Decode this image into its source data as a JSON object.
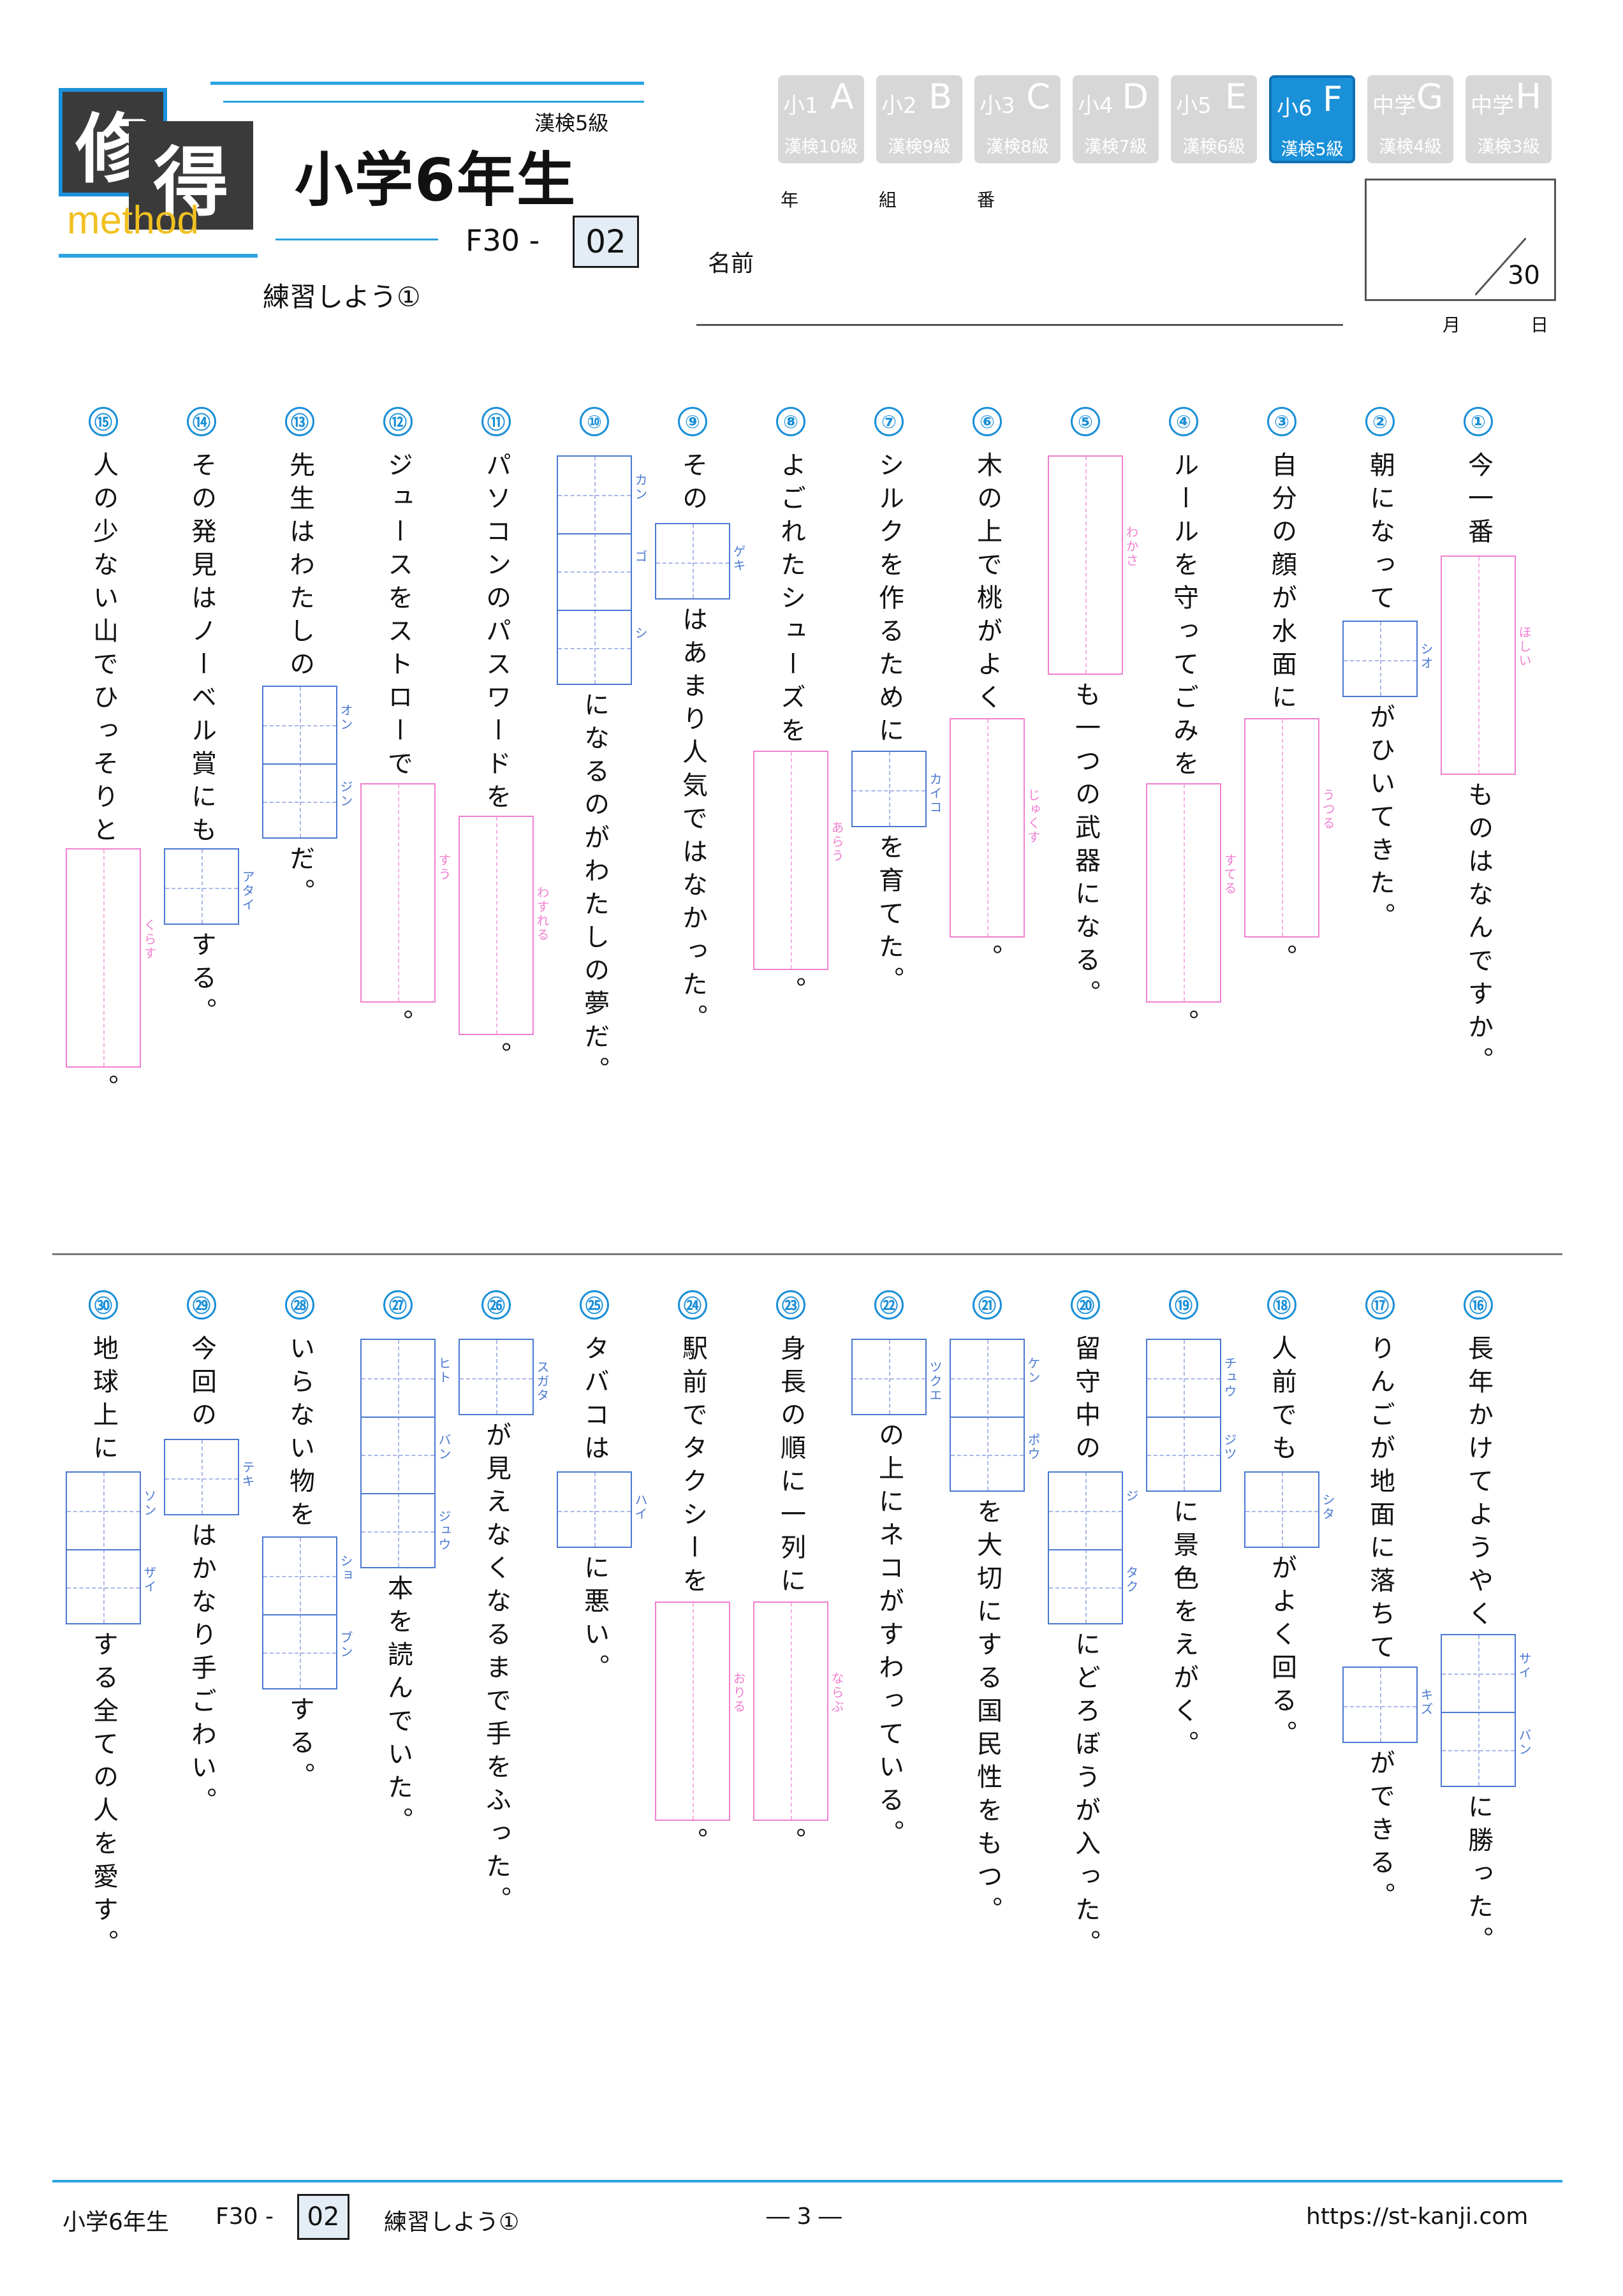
{
  "header": {
    "logo_top": "修",
    "logo_bottom": "得",
    "logo_word": "method",
    "kanken": "漢検5級",
    "grade_title": "小学6年生",
    "code_prefix": "F30 -",
    "code_num": "02",
    "subtitle": "練習しよう①",
    "year_label": "年",
    "class_label": "組",
    "no_label": "番",
    "name_label": "名前",
    "score_total": "30",
    "month_label": "月",
    "day_label": "日"
  },
  "grades": [
    {
      "main": "小1",
      "letter": "A",
      "sub": "漢検10級",
      "active": false
    },
    {
      "main": "小2",
      "letter": "B",
      "sub": "漢検9級",
      "active": false
    },
    {
      "main": "小3",
      "letter": "C",
      "sub": "漢検8級",
      "active": false
    },
    {
      "main": "小4",
      "letter": "D",
      "sub": "漢検7級",
      "active": false
    },
    {
      "main": "小5",
      "letter": "E",
      "sub": "漢検6級",
      "active": false
    },
    {
      "main": "小6",
      "letter": "F",
      "sub": "漢検5級",
      "active": true
    },
    {
      "main": "中学",
      "letter": "G",
      "sub": "漢検4級",
      "active": false
    },
    {
      "main": "中学",
      "letter": "H",
      "sub": "漢検3級",
      "active": false
    }
  ],
  "questions": [
    {
      "num": "①",
      "parts": [
        {
          "t": "今一番"
        },
        {
          "box": "pink",
          "n": 3,
          "furi": "ほしい"
        },
        {
          "t": "ものはなんですか。"
        }
      ]
    },
    {
      "num": "②",
      "parts": [
        {
          "t": "朝になって"
        },
        {
          "box": "blue",
          "n": 1,
          "furi": "シオ"
        },
        {
          "t": "がひいてきた。"
        }
      ]
    },
    {
      "num": "③",
      "parts": [
        {
          "t": "自分の顔が水面に"
        },
        {
          "box": "pink",
          "n": 3,
          "furi": "うつる"
        },
        {
          "t": "。"
        }
      ]
    },
    {
      "num": "④",
      "parts": [
        {
          "t": "ルールを守ってごみを"
        },
        {
          "box": "pink",
          "n": 3,
          "furi": "すてる"
        },
        {
          "t": "。"
        }
      ]
    },
    {
      "num": "⑤",
      "parts": [
        {
          "box": "pink",
          "n": 3,
          "furi": "わかさ"
        },
        {
          "t": "も一つの武器になる。"
        }
      ]
    },
    {
      "num": "⑥",
      "parts": [
        {
          "t": "木の上で桃がよく"
        },
        {
          "box": "pink",
          "n": 3,
          "furi": "じゅくす"
        },
        {
          "t": "。"
        }
      ]
    },
    {
      "num": "⑦",
      "parts": [
        {
          "t": "シルクを作るために"
        },
        {
          "box": "blue",
          "n": 1,
          "furi": "カイコ"
        },
        {
          "t": "を育てた。"
        }
      ]
    },
    {
      "num": "⑧",
      "parts": [
        {
          "t": "よごれたシューズを"
        },
        {
          "box": "pink",
          "n": 3,
          "furi": "あらう"
        },
        {
          "t": "。"
        }
      ]
    },
    {
      "num": "⑨",
      "parts": [
        {
          "t": "その"
        },
        {
          "box": "blue",
          "n": 1,
          "furi": "ゲキ"
        },
        {
          "t": "はあまり人気ではなかった。"
        }
      ]
    },
    {
      "num": "⑩",
      "parts": [
        {
          "box": "blue",
          "n": 3,
          "furi3": [
            "カン",
            "ゴ",
            "シ"
          ]
        },
        {
          "t": "になるのがわたしの夢だ。"
        }
      ]
    },
    {
      "num": "⑪",
      "parts": [
        {
          "t": "パソコンのパスワードを"
        },
        {
          "box": "pink",
          "n": 3,
          "furi": "わすれる"
        },
        {
          "t": "。"
        }
      ]
    },
    {
      "num": "⑫",
      "parts": [
        {
          "t": "ジュースをストローで"
        },
        {
          "box": "pink",
          "n": 3,
          "furi": "すう"
        },
        {
          "t": "。"
        }
      ]
    },
    {
      "num": "⑬",
      "parts": [
        {
          "t": "先生はわたしの"
        },
        {
          "box": "blue",
          "n": 2,
          "furi2": [
            "オン",
            "ジン"
          ]
        },
        {
          "t": "だ。"
        }
      ]
    },
    {
      "num": "⑭",
      "parts": [
        {
          "t": "その発見はノーベル賞にも"
        },
        {
          "box": "blue",
          "n": 1,
          "furi": "アタイ"
        },
        {
          "t": "する。"
        }
      ]
    },
    {
      "num": "⑮",
      "parts": [
        {
          "t": "人の少ない山でひっそりと"
        },
        {
          "box": "pink",
          "n": 3,
          "furi": "くらす"
        },
        {
          "t": "。"
        }
      ]
    },
    {
      "num": "⑯",
      "parts": [
        {
          "t": "長年かけてようやく"
        },
        {
          "box": "blue",
          "n": 2,
          "furi2": [
            "サイ",
            "バン"
          ]
        },
        {
          "t": "に勝った。"
        }
      ]
    },
    {
      "num": "⑰",
      "parts": [
        {
          "t": "りんごが地面に落ちて"
        },
        {
          "box": "blue",
          "n": 1,
          "furi": "キズ"
        },
        {
          "t": "ができる。"
        }
      ]
    },
    {
      "num": "⑱",
      "parts": [
        {
          "t": "人前でも"
        },
        {
          "box": "blue",
          "n": 1,
          "furi": "シタ"
        },
        {
          "t": "がよく回る。"
        }
      ]
    },
    {
      "num": "⑲",
      "parts": [
        {
          "box": "blue",
          "n": 2,
          "furi2": [
            "チュウ",
            "ジツ"
          ]
        },
        {
          "t": "に景色をえがく。"
        }
      ]
    },
    {
      "num": "⑳",
      "parts": [
        {
          "t": "留守中の"
        },
        {
          "box": "blue",
          "n": 2,
          "furi2": [
            "ジ",
            "タク"
          ]
        },
        {
          "t": "にどろぼうが入った。"
        }
      ]
    },
    {
      "num": "㉑",
      "parts": [
        {
          "box": "blue",
          "n": 2,
          "furi2": [
            "ケン",
            "ポウ"
          ]
        },
        {
          "t": "を大切にする国民性をもつ。"
        }
      ]
    },
    {
      "num": "㉒",
      "parts": [
        {
          "box": "blue",
          "n": 1,
          "furi": "ツクエ"
        },
        {
          "t": "の上にネコがすわっている。"
        }
      ]
    },
    {
      "num": "㉓",
      "parts": [
        {
          "t": "身長の順に一列に"
        },
        {
          "box": "pink",
          "n": 3,
          "furi": "ならぶ"
        },
        {
          "t": "。"
        }
      ]
    },
    {
      "num": "㉔",
      "parts": [
        {
          "t": "駅前でタクシーを"
        },
        {
          "box": "pink",
          "n": 3,
          "furi": "おりる"
        },
        {
          "t": "。"
        }
      ]
    },
    {
      "num": "㉕",
      "parts": [
        {
          "t": "タバコは"
        },
        {
          "box": "blue",
          "n": 1,
          "furi": "ハイ"
        },
        {
          "t": "に悪い。"
        }
      ]
    },
    {
      "num": "㉖",
      "parts": [
        {
          "box": "blue",
          "n": 1,
          "furi": "スガタ"
        },
        {
          "t": "が見えなくなるまで手をふった。"
        }
      ]
    },
    {
      "num": "㉗",
      "parts": [
        {
          "box": "blue",
          "n": 3,
          "furi3": [
            "ヒト",
            "バン",
            "ジュウ"
          ]
        },
        {
          "t": "本を読んでいた。"
        }
      ]
    },
    {
      "num": "㉘",
      "parts": [
        {
          "t": "いらない物を"
        },
        {
          "box": "blue",
          "n": 2,
          "furi2": [
            "ショ",
            "ブン"
          ]
        },
        {
          "t": "する。"
        }
      ]
    },
    {
      "num": "㉙",
      "parts": [
        {
          "t": "今回の"
        },
        {
          "box": "blue",
          "n": 1,
          "furi": "テキ"
        },
        {
          "t": "はかなり手ごわい。"
        }
      ]
    },
    {
      "num": "㉚",
      "parts": [
        {
          "t": "地球上に"
        },
        {
          "box": "blue",
          "n": 2,
          "furi2": [
            "ソン",
            "ザイ"
          ]
        },
        {
          "t": "する全ての人を愛す。"
        }
      ]
    }
  ],
  "footer": {
    "grade": "小学6年生",
    "code_prefix": "F30 -",
    "code_num": "02",
    "title": "練習しよう①",
    "page": "― 3 ―",
    "url": "https://st-kanji.com"
  }
}
